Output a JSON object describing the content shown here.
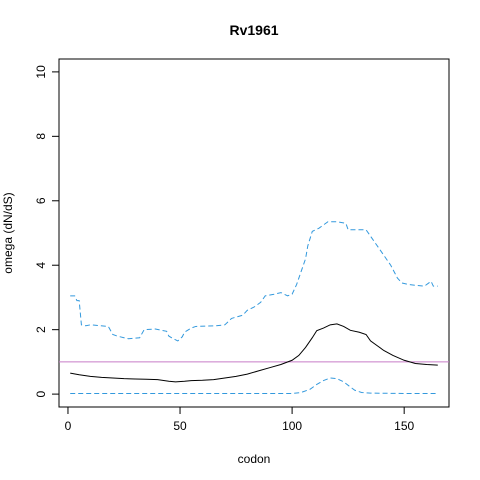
{
  "chart_data": {
    "type": "line",
    "title": "Rv1961",
    "xlabel": "codon",
    "ylabel": "omega (dN/dS)",
    "xlim": [
      -4,
      170
    ],
    "ylim": [
      -0.4,
      10.4
    ],
    "x_ticks": [
      0,
      50,
      100,
      150
    ],
    "y_ticks": [
      0,
      2,
      4,
      6,
      8,
      10
    ],
    "grid": false,
    "legend": "none",
    "reference_line": {
      "y": 1,
      "color": "#c77cc7"
    },
    "series": [
      {
        "style": "solid",
        "color": "#000000",
        "points": [
          [
            1,
            0.65
          ],
          [
            5,
            0.6
          ],
          [
            10,
            0.55
          ],
          [
            15,
            0.52
          ],
          [
            20,
            0.5
          ],
          [
            25,
            0.48
          ],
          [
            30,
            0.47
          ],
          [
            35,
            0.46
          ],
          [
            40,
            0.45
          ],
          [
            45,
            0.4
          ],
          [
            48,
            0.38
          ],
          [
            52,
            0.4
          ],
          [
            55,
            0.42
          ],
          [
            60,
            0.43
          ],
          [
            65,
            0.45
          ],
          [
            70,
            0.5
          ],
          [
            75,
            0.55
          ],
          [
            80,
            0.62
          ],
          [
            85,
            0.72
          ],
          [
            90,
            0.82
          ],
          [
            95,
            0.92
          ],
          [
            100,
            1.05
          ],
          [
            103,
            1.2
          ],
          [
            106,
            1.45
          ],
          [
            109,
            1.75
          ],
          [
            111,
            1.97
          ],
          [
            114,
            2.05
          ],
          [
            117,
            2.15
          ],
          [
            120,
            2.18
          ],
          [
            123,
            2.1
          ],
          [
            126,
            1.98
          ],
          [
            130,
            1.92
          ],
          [
            133,
            1.85
          ],
          [
            135,
            1.65
          ],
          [
            138,
            1.5
          ],
          [
            141,
            1.35
          ],
          [
            145,
            1.2
          ],
          [
            150,
            1.05
          ],
          [
            155,
            0.95
          ],
          [
            160,
            0.92
          ],
          [
            165,
            0.9
          ]
        ]
      },
      {
        "style": "dashed",
        "color": "#3399dd",
        "points": [
          [
            1,
            3.05
          ],
          [
            3,
            3.05
          ],
          [
            4,
            2.9
          ],
          [
            5,
            2.9
          ],
          [
            6,
            2.15
          ],
          [
            8,
            2.12
          ],
          [
            10,
            2.15
          ],
          [
            18,
            2.1
          ],
          [
            20,
            1.85
          ],
          [
            22,
            1.8
          ],
          [
            25,
            1.75
          ],
          [
            27,
            1.72
          ],
          [
            32,
            1.75
          ],
          [
            34,
            2.0
          ],
          [
            39,
            2.02
          ],
          [
            44,
            1.95
          ],
          [
            45,
            1.8
          ],
          [
            47,
            1.72
          ],
          [
            49,
            1.65
          ],
          [
            51,
            1.78
          ],
          [
            52,
            1.92
          ],
          [
            55,
            2.05
          ],
          [
            57,
            2.1
          ],
          [
            66,
            2.12
          ],
          [
            70,
            2.15
          ],
          [
            73,
            2.35
          ],
          [
            78,
            2.45
          ],
          [
            80,
            2.6
          ],
          [
            83,
            2.7
          ],
          [
            86,
            2.85
          ],
          [
            88,
            3.05
          ],
          [
            92,
            3.1
          ],
          [
            95,
            3.15
          ],
          [
            98,
            3.05
          ],
          [
            100,
            3.1
          ],
          [
            102,
            3.4
          ],
          [
            104,
            3.8
          ],
          [
            106,
            4.2
          ],
          [
            107,
            4.6
          ],
          [
            109,
            5.05
          ],
          [
            112,
            5.15
          ],
          [
            114,
            5.25
          ],
          [
            116,
            5.35
          ],
          [
            120,
            5.35
          ],
          [
            124,
            5.3
          ],
          [
            125,
            5.1
          ],
          [
            133,
            5.1
          ],
          [
            136,
            4.8
          ],
          [
            140,
            4.4
          ],
          [
            144,
            4.0
          ],
          [
            147,
            3.6
          ],
          [
            149,
            3.45
          ],
          [
            152,
            3.4
          ],
          [
            159,
            3.35
          ],
          [
            161,
            3.45
          ],
          [
            162,
            3.5
          ],
          [
            163,
            3.35
          ],
          [
            165,
            3.35
          ]
        ]
      },
      {
        "style": "dashed",
        "color": "#3399dd",
        "points": [
          [
            1,
            0.02
          ],
          [
            60,
            0.02
          ],
          [
            100,
            0.02
          ],
          [
            104,
            0.05
          ],
          [
            108,
            0.15
          ],
          [
            111,
            0.3
          ],
          [
            114,
            0.42
          ],
          [
            117,
            0.5
          ],
          [
            120,
            0.48
          ],
          [
            123,
            0.38
          ],
          [
            126,
            0.22
          ],
          [
            128,
            0.12
          ],
          [
            131,
            0.05
          ],
          [
            135,
            0.03
          ],
          [
            150,
            0.02
          ],
          [
            165,
            0.02
          ]
        ]
      }
    ]
  }
}
